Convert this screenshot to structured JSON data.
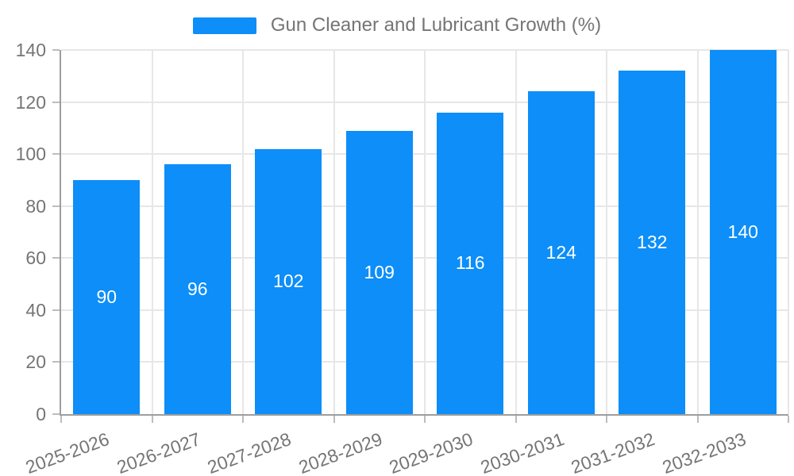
{
  "colors": {
    "bar": "#0d8ef8",
    "bar_value_text": "#ffffff",
    "axis_line": "#9e9e9e",
    "gridline": "#e7e7e7",
    "tick": "#bdbdbd",
    "text": "#757575",
    "background": "#ffffff"
  },
  "legend": {
    "swatch_icon": "legend-color-swatch",
    "label": "Gun Cleaner and Lubricant Growth (%)"
  },
  "chart_data": {
    "type": "bar",
    "title": "Gun Cleaner and Lubricant Growth (%)",
    "categories": [
      "2025-2026",
      "2026-2027",
      "2027-2028",
      "2028-2029",
      "2029-2030",
      "2030-2031",
      "2031-2032",
      "2032-2033"
    ],
    "values": [
      90,
      96,
      102,
      109,
      116,
      124,
      132,
      140
    ],
    "xlabel": "",
    "ylabel": "",
    "ylim": [
      0,
      140
    ],
    "ytick_step": 20,
    "grid": true,
    "legend_position": "top",
    "bar_labels_shown": true,
    "xtick_rotation_deg": -20
  }
}
